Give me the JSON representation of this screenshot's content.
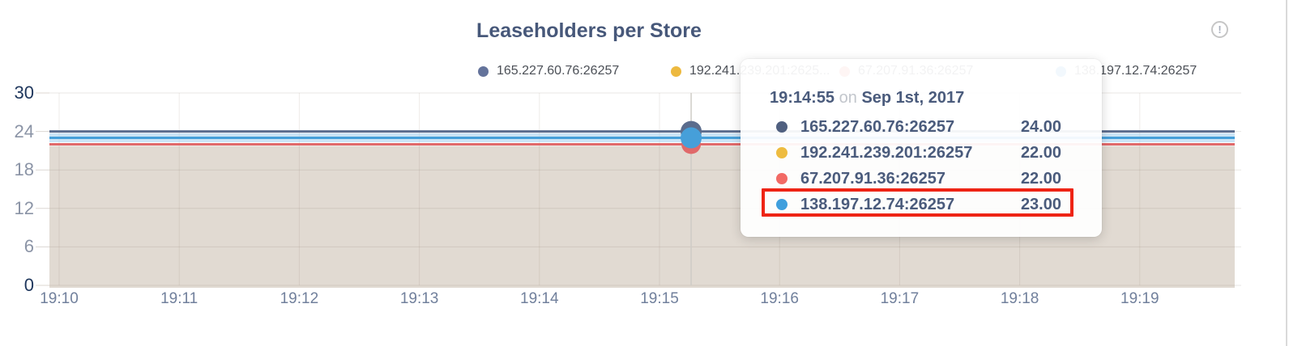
{
  "panel": {
    "title": "Leaseholders per Store"
  },
  "legend": {
    "items": [
      {
        "label": "165.227.60.76:26257",
        "color": "#64739b"
      },
      {
        "label": "192.241.239.201:2625...",
        "color": "#edb93f"
      },
      {
        "label": "67.207.91.36:26257",
        "color": "#ef6f6a"
      },
      {
        "label": "138.197.12.74:26257",
        "color": "#45a1de"
      }
    ]
  },
  "tooltip": {
    "time": "19:14:55",
    "separator": "on",
    "date": "Sep 1st, 2017",
    "rows": [
      {
        "label": "165.227.60.76:26257",
        "value": "24.00",
        "color": "#506080",
        "highlighted": false
      },
      {
        "label": "192.241.239.201:26257",
        "value": "22.00",
        "color": "#eebc40",
        "highlighted": false
      },
      {
        "label": "67.207.91.36:26257",
        "value": "22.00",
        "color": "#f26a65",
        "highlighted": false
      },
      {
        "label": "138.197.12.74:26257",
        "value": "23.00",
        "color": "#3f9fdd",
        "highlighted": true
      }
    ],
    "highlight_color": "#ee2415"
  },
  "chart_data": {
    "type": "area",
    "title": "Leaseholders per Store",
    "x_ticks": [
      "19:10",
      "19:11",
      "19:12",
      "19:13",
      "19:14",
      "19:15",
      "19:16",
      "19:17",
      "19:18",
      "19:19"
    ],
    "y_ticks": [
      0,
      6,
      12,
      18,
      24,
      30
    ],
    "ylim": [
      0,
      30
    ],
    "grid": true,
    "legend_position": "top",
    "fill_color": "#e1dad2",
    "series": [
      {
        "name": "165.227.60.76:26257",
        "color": "#5b6c8d",
        "values": [
          24,
          24,
          24,
          24,
          24,
          24,
          24,
          24,
          24,
          24
        ]
      },
      {
        "name": "192.241.239.201:26257",
        "color": "#eebb3e",
        "values": [
          22,
          22,
          22,
          22,
          22,
          22,
          22,
          22,
          22,
          22
        ]
      },
      {
        "name": "67.207.91.36:26257",
        "color": "#e0696a",
        "values": [
          22,
          22,
          22,
          22,
          22,
          22,
          22,
          22,
          22,
          22
        ]
      },
      {
        "name": "138.197.12.74:26257",
        "color": "#469fd9",
        "values": [
          23,
          23,
          23,
          23,
          23,
          23,
          23,
          23,
          23,
          23
        ]
      }
    ],
    "hover_marker": {
      "time": "19:14:55",
      "date": "Sep 1st, 2017",
      "x_frac": 0.5414,
      "values": [
        24,
        22,
        22,
        23
      ],
      "highlighted_series": "138.197.12.74:26257"
    }
  }
}
